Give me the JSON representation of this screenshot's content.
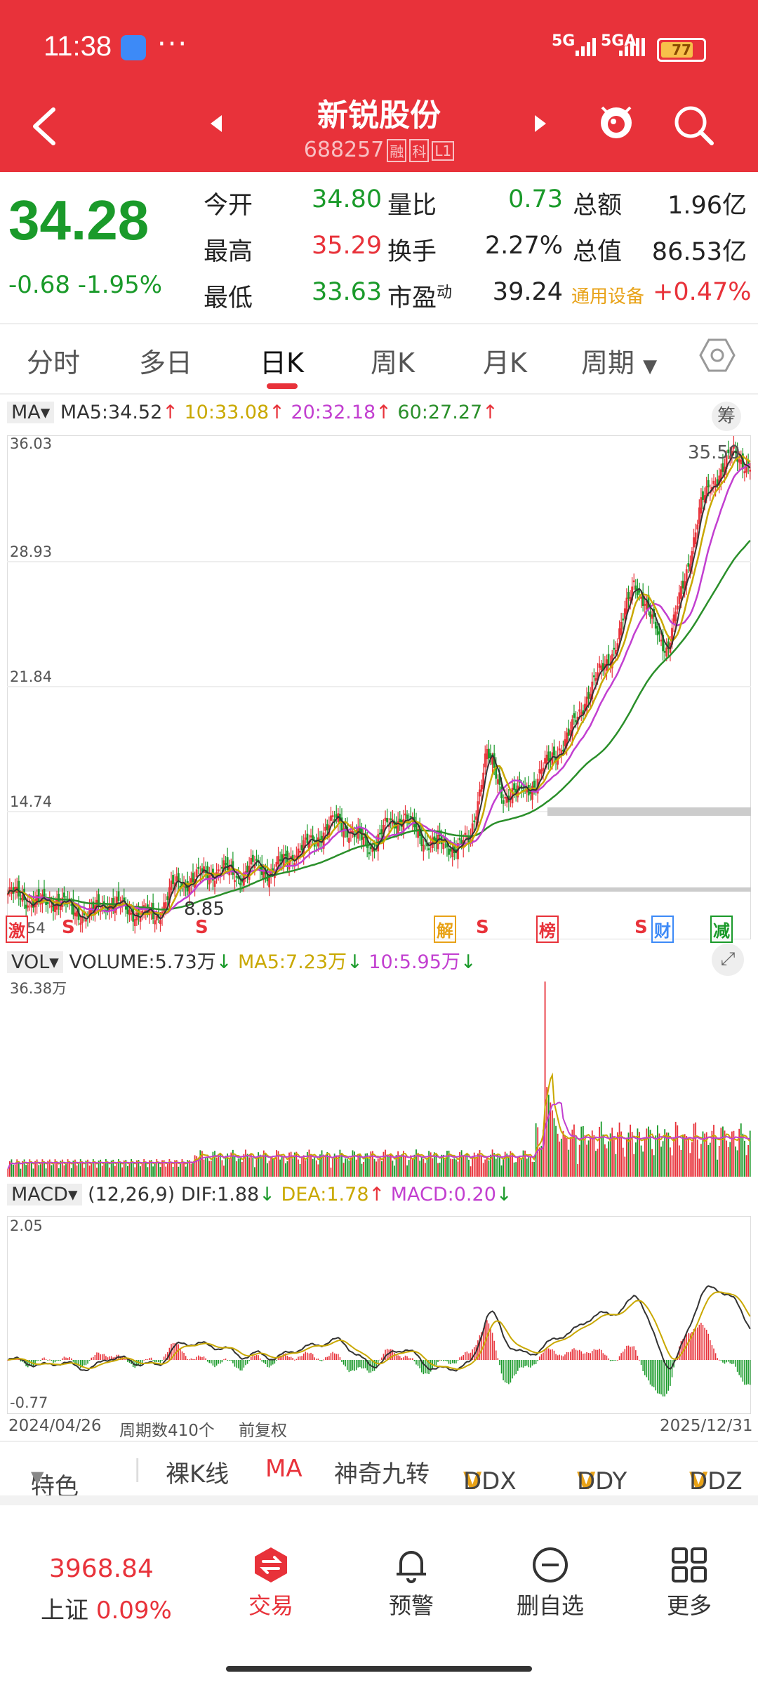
{
  "status": {
    "time": "11:38",
    "signal1": "5G",
    "signal2": "5GA",
    "battery": "77"
  },
  "header": {
    "title": "新锐股份",
    "code": "688257",
    "tags": [
      "融",
      "科",
      "L1"
    ]
  },
  "quote": {
    "price": "34.28",
    "change": "-0.68",
    "change_pct": "-1.95%",
    "open_label": "今开",
    "open": "34.80",
    "high_label": "最高",
    "high": "35.29",
    "low_label": "最低",
    "low": "33.63",
    "vol_ratio_label": "量比",
    "vol_ratio": "0.73",
    "turnover_label": "换手",
    "turnover": "2.27%",
    "pe_label": "市盈",
    "pe_sup": "动",
    "pe": "39.24",
    "amount_label": "总额",
    "amount": "1.96亿",
    "mcap_label": "总值",
    "mcap": "86.53亿",
    "sector": "通用设备",
    "sector_chg": "+0.47%"
  },
  "tabs": [
    "分时",
    "多日",
    "日K",
    "周K",
    "月K",
    "周期"
  ],
  "ma_legend": {
    "label": "MA",
    "ma5": "MA5:34.52",
    "ma10": "10:33.08",
    "ma20": "20:32.18",
    "ma60": "60:27.27",
    "btn": "筹"
  },
  "vol_legend": {
    "label": "VOL",
    "volume": "VOLUME:5.73万",
    "ma5": "MA5:7.23万",
    "ma10": "10:5.95万"
  },
  "macd_legend": {
    "label": "MACD",
    "params": "(12,26,9)",
    "dif": "DIF:1.88",
    "dea": "DEA:1.78",
    "macd": "MACD:0.20"
  },
  "chart_data": {
    "type": "line",
    "price_axis": [
      "36.03",
      "28.93",
      "21.84",
      "14.74"
    ],
    "price_ylim": [
      7.64,
      36.03
    ],
    "high_label": "35.50",
    "low_label": "8.85",
    "bottom_clip": "54",
    "vol_max": "36.38万",
    "macd_axis": [
      "2.05",
      "-0.77"
    ],
    "start_date": "2024/04/26",
    "end_date": "2025/12/31",
    "period_count": "周期数410个",
    "adjust": "前复权",
    "markers": [
      "激",
      "S",
      "S",
      "解",
      "S",
      "榜",
      "S",
      "财",
      "减"
    ],
    "close_samples": [
      10.2,
      10.0,
      9.6,
      9.9,
      9.2,
      9.0,
      9.8,
      9.4,
      9.1,
      8.9,
      10.6,
      11.0,
      11.3,
      11.6,
      11.2,
      11.8,
      11.4,
      12.3,
      12.8,
      13.6,
      14.4,
      13.5,
      12.9,
      14.0,
      14.6,
      13.4,
      13.0,
      12.9,
      13.1,
      18.2,
      15.8,
      15.9,
      16.5,
      18.0,
      19.0,
      21.2,
      22.8,
      24.5,
      28.0,
      25.6,
      24.0,
      27.8,
      32.0,
      33.8,
      35.0,
      34.3
    ]
  },
  "features": {
    "label": "特色",
    "items": [
      "裸K线",
      "MA",
      "神奇九转",
      "DDX",
      "DDY",
      "DDZ"
    ]
  },
  "bottom_nav": {
    "index_value": "3968.84",
    "index_name": "上证",
    "index_chg": "0.09%",
    "items": [
      "交易",
      "预警",
      "删自选",
      "更多"
    ]
  },
  "colors": {
    "red": "#e8323a",
    "green": "#1a9a2a",
    "ma5": "#333333",
    "ma10": "#c9a800",
    "ma20": "#c23fd0",
    "ma60": "#2a8f2a"
  }
}
